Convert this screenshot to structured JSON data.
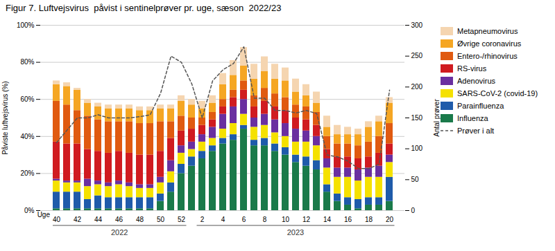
{
  "chart_data": {
    "type": "bar",
    "stacked": true,
    "title": "Figur 7. Luftvejsvirus  påvist i sentinelprøver pr. uge, sæson  2022/23",
    "xlabel": "Uge",
    "ylabel": "Påviste luftvejsvirus (%)",
    "y2label": "Antal prøver",
    "categories": [
      "40",
      null,
      "42",
      null,
      "44",
      null,
      "46",
      null,
      "48",
      null,
      "50",
      null,
      "52",
      null,
      "2",
      null,
      "4",
      null,
      "6",
      null,
      "8",
      null,
      "10",
      null,
      "12",
      null,
      "14",
      null,
      "16",
      null,
      "18",
      null,
      "20"
    ],
    "series": [
      {
        "name": "Influenza",
        "color": "#1a7a4a",
        "values": [
          0.01,
          0.01,
          0.01,
          0.01,
          0.01,
          0.01,
          0.01,
          0.01,
          0.01,
          0.01,
          0.05,
          0.1,
          0.2,
          0.24,
          0.28,
          0.32,
          0.36,
          0.38,
          0.44,
          0.35,
          0.35,
          0.32,
          0.3,
          0.26,
          0.24,
          0.22,
          0.1,
          0.05,
          0.03,
          0.01,
          0.03,
          0.03,
          0.05
        ]
      },
      {
        "name": "Parainfluenza",
        "color": "#1f5baa",
        "values": [
          0.09,
          0.09,
          0.09,
          0.05,
          0.07,
          0.06,
          0.06,
          0.06,
          0.06,
          0.06,
          0.04,
          0.05,
          0.05,
          0.05,
          0.04,
          0.03,
          0.03,
          0.03,
          0.02,
          0.03,
          0.04,
          0.04,
          0.04,
          0.04,
          0.05,
          0.05,
          0.04,
          0.04,
          0.04,
          0.05,
          0.04,
          0.04,
          0.13
        ]
      },
      {
        "name": "SARS-CoV-2 (covid-19)",
        "color": "#f5e100",
        "values": [
          0.06,
          0.05,
          0.05,
          0.07,
          0.06,
          0.06,
          0.07,
          0.06,
          0.05,
          0.05,
          0.06,
          0.06,
          0.06,
          0.04,
          0.05,
          0.04,
          0.05,
          0.06,
          0.06,
          0.07,
          0.07,
          0.06,
          0.06,
          0.07,
          0.08,
          0.08,
          0.09,
          0.09,
          0.11,
          0.1,
          0.11,
          0.11,
          0.08
        ]
      },
      {
        "name": "Adenovirus",
        "color": "#6a2fa0",
        "values": [
          0.01,
          0.01,
          0.01,
          0.04,
          0.02,
          0.02,
          0.02,
          0.02,
          0.02,
          0.02,
          0.03,
          0.06,
          0.04,
          0.04,
          0.04,
          0.06,
          0.08,
          0.09,
          0.08,
          0.05,
          0.06,
          0.07,
          0.07,
          0.07,
          0.06,
          0.05,
          0.05,
          0.05,
          0.05,
          0.06,
          0.05,
          0.06,
          0.04
        ]
      },
      {
        "name": "RS-virus",
        "color": "#d01b20",
        "values": [
          0.2,
          0.2,
          0.2,
          0.16,
          0.16,
          0.16,
          0.16,
          0.16,
          0.16,
          0.16,
          0.14,
          0.12,
          0.08,
          0.07,
          0.05,
          0.04,
          0.04,
          0.05,
          0.05,
          0.06,
          0.07,
          0.07,
          0.07,
          0.06,
          0.06,
          0.06,
          0.05,
          0.06,
          0.06,
          0.06,
          0.06,
          0.07,
          0.06
        ]
      },
      {
        "name": "Entero-/rhinovirus",
        "color": "#e05a10",
        "values": [
          0.22,
          0.21,
          0.18,
          0.18,
          0.17,
          0.17,
          0.16,
          0.17,
          0.17,
          0.17,
          0.16,
          0.09,
          0.08,
          0.06,
          0.04,
          0.04,
          0.04,
          0.04,
          0.05,
          0.06,
          0.07,
          0.07,
          0.07,
          0.07,
          0.07,
          0.07,
          0.07,
          0.07,
          0.07,
          0.07,
          0.08,
          0.09,
          0.11
        ]
      },
      {
        "name": "Øvrige coronavirus",
        "color": "#f5a623",
        "values": [
          0.09,
          0.1,
          0.11,
          0.07,
          0.07,
          0.07,
          0.07,
          0.07,
          0.07,
          0.07,
          0.07,
          0.07,
          0.08,
          0.07,
          0.05,
          0.05,
          0.08,
          0.08,
          0.08,
          0.09,
          0.09,
          0.08,
          0.09,
          0.07,
          0.06,
          0.05,
          0.05,
          0.05,
          0.05,
          0.06,
          0.08,
          0.08,
          0.11
        ]
      },
      {
        "name": "Metapneumovirus",
        "color": "#f5d5b0",
        "values": [
          0.02,
          0.02,
          0.01,
          0.02,
          0.02,
          0.02,
          0.02,
          0.02,
          0.02,
          0.02,
          0.02,
          0.02,
          0.03,
          0.03,
          0.04,
          0.04,
          0.06,
          0.08,
          0.1,
          0.08,
          0.08,
          0.08,
          0.07,
          0.07,
          0.06,
          0.06,
          0.06,
          0.05,
          0.04,
          0.03,
          0.03,
          0.03,
          0.03
        ]
      },
      {
        "name": "Prøver i alt",
        "type": "line",
        "axis": "y2",
        "color": "#555555",
        "line_style": "dashed",
        "values": [
          110,
          130,
          150,
          150,
          155,
          150,
          150,
          150,
          152,
          155,
          190,
          250,
          240,
          205,
          150,
          210,
          228,
          238,
          265,
          182,
          182,
          162,
          162,
          158,
          162,
          157,
          90,
          87,
          80,
          68,
          68,
          75,
          195
        ]
      }
    ],
    "ylim": [
      0,
      1.0
    ],
    "yticks": [
      {
        "value": 0,
        "label": "0%"
      },
      {
        "value": 0.2,
        "label": "20%"
      },
      {
        "value": 0.4,
        "label": "40%"
      },
      {
        "value": 0.6,
        "label": "60%"
      },
      {
        "value": 0.8,
        "label": "80%"
      },
      {
        "value": 1.0,
        "label": "100%"
      }
    ],
    "y2lim": [
      0,
      300
    ],
    "y2ticks": [
      0,
      50,
      100,
      150,
      200,
      250,
      300
    ],
    "grid": true,
    "legend": "right",
    "annotations": [
      "2022",
      "2023"
    ]
  }
}
